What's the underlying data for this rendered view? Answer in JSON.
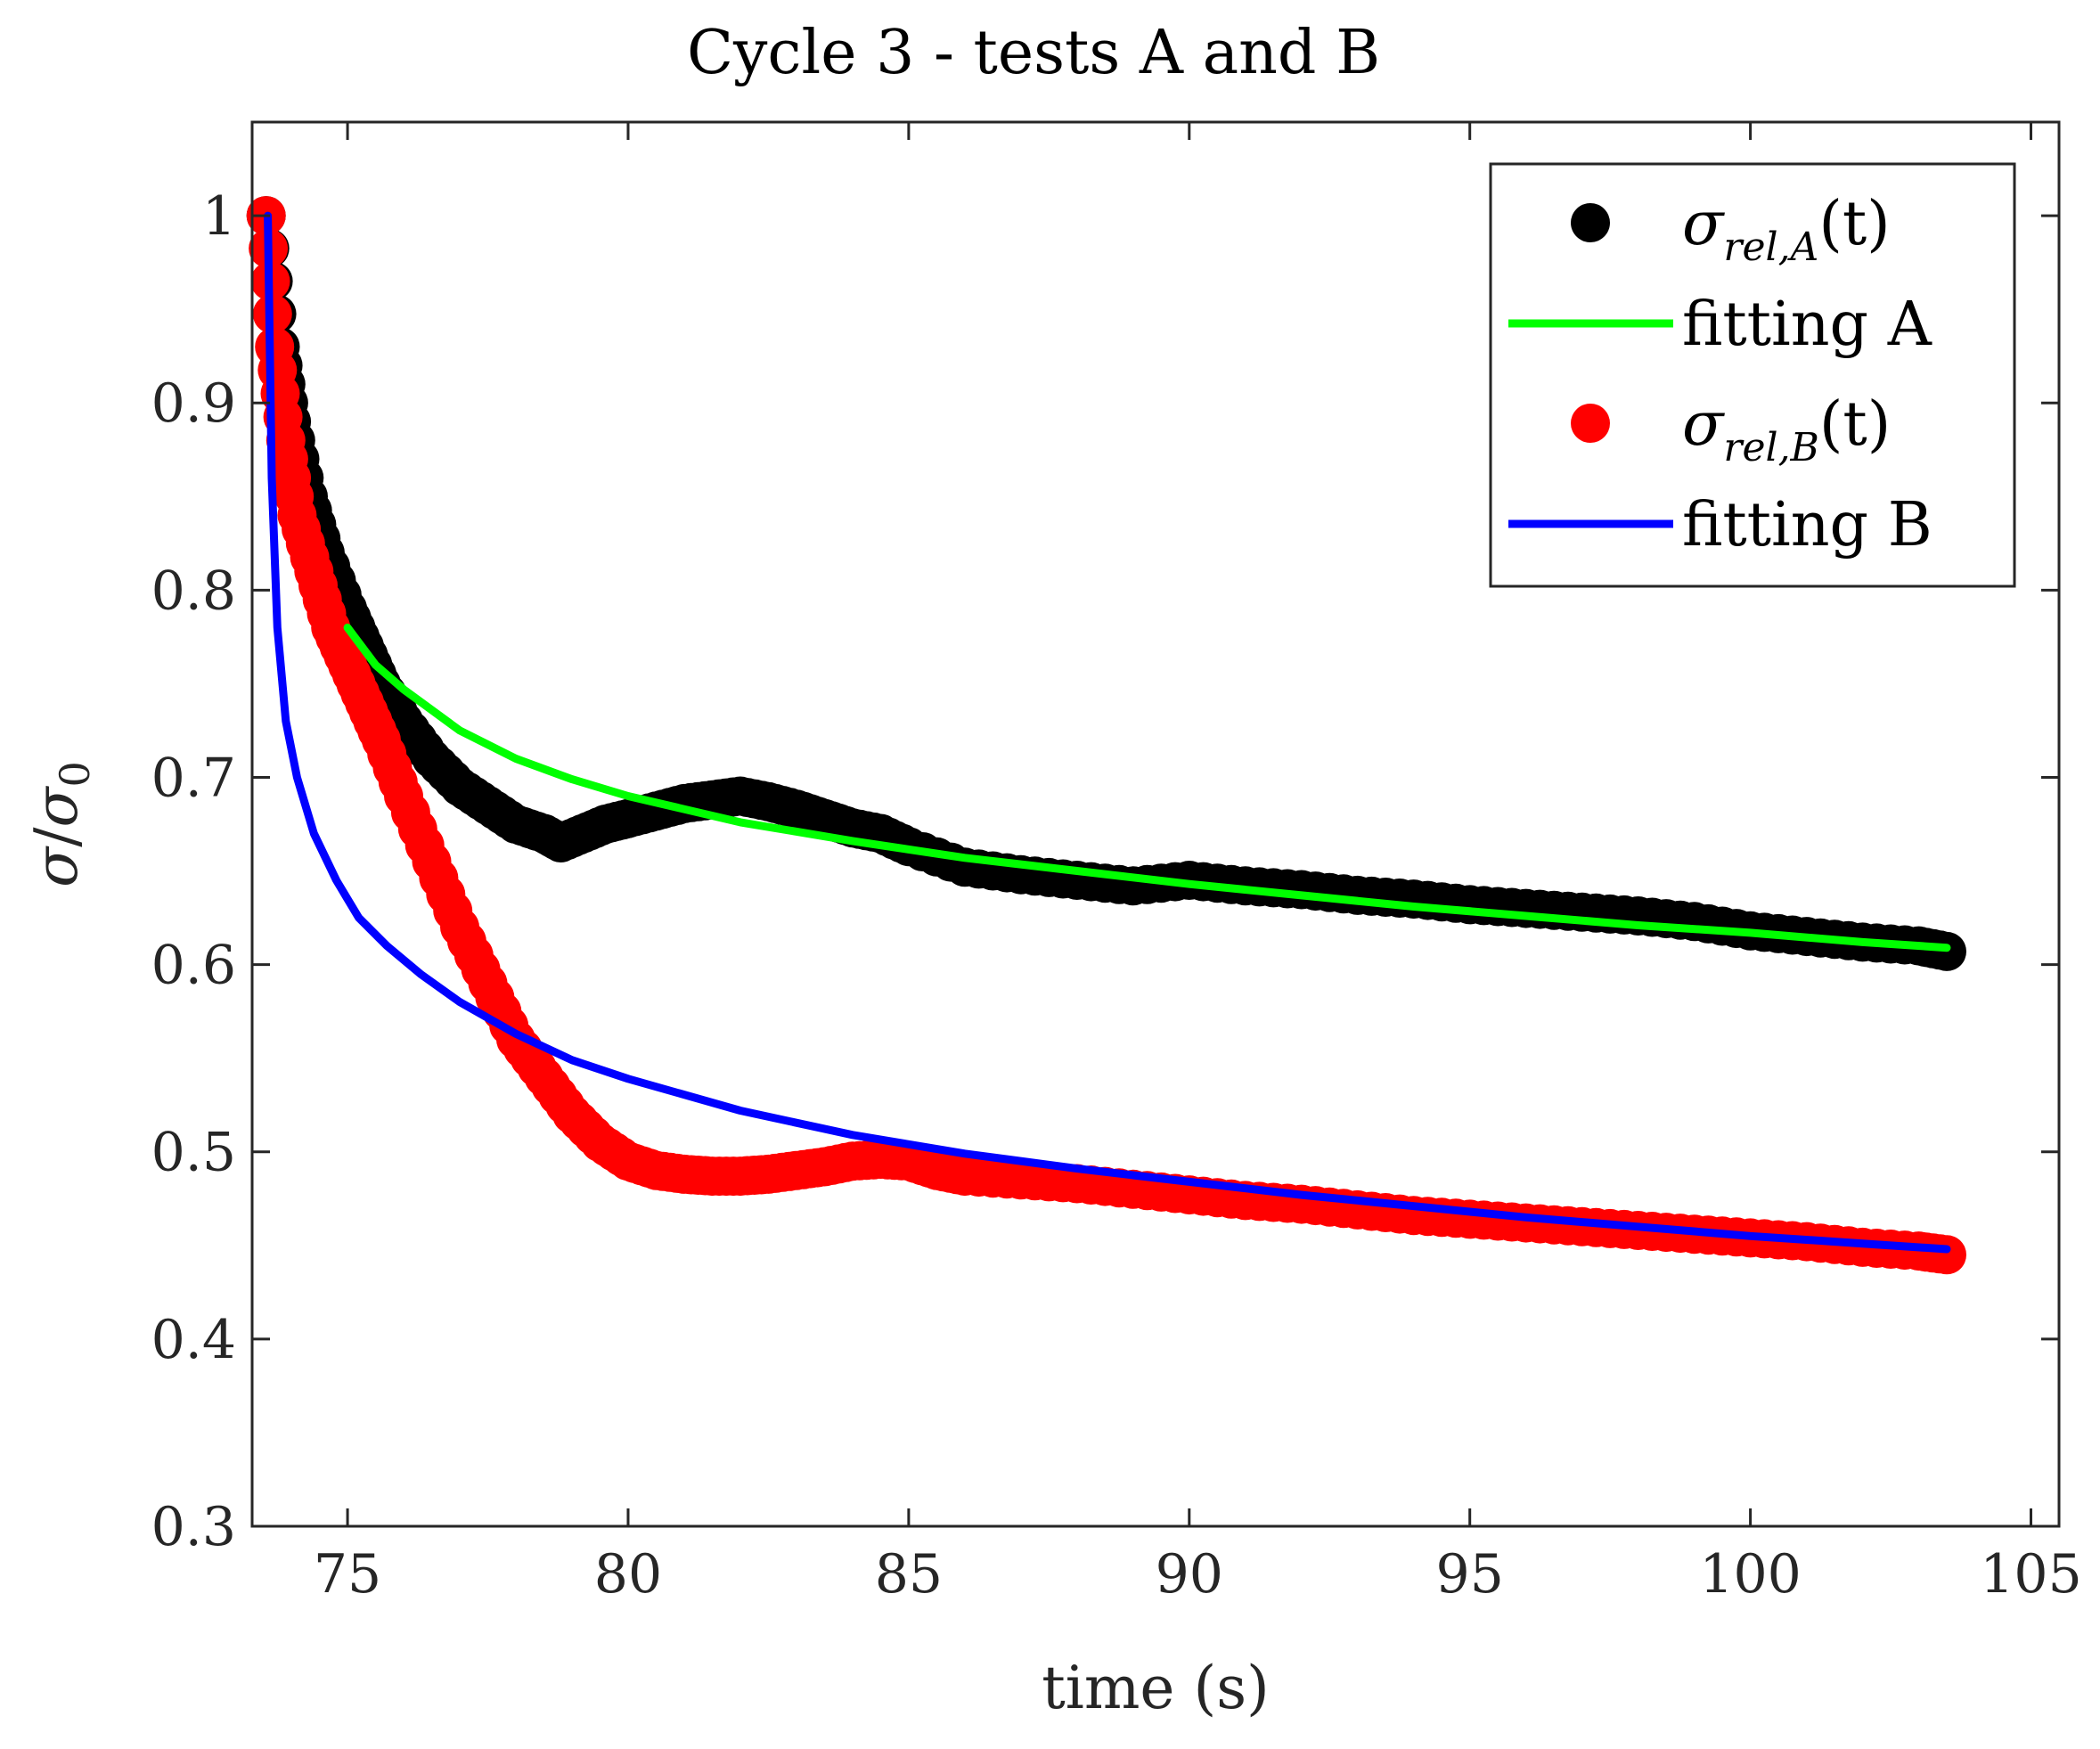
{
  "chart_data": {
    "type": "scatter",
    "title": "Cycle 3 - tests A and B",
    "xlabel": "time (s)",
    "ylabel": {
      "main": "σ",
      "slash": "/",
      "denominator": "σ",
      "denominator_sub": "0"
    },
    "xlim": [
      73.3,
      105.5
    ],
    "ylim": [
      0.3,
      1.05
    ],
    "xticks": [
      75,
      80,
      85,
      90,
      95,
      100,
      105
    ],
    "yticks": [
      0.3,
      0.4,
      0.5,
      0.6,
      0.7,
      0.8,
      0.9,
      1
    ],
    "xtick_labels": [
      "75",
      "80",
      "85",
      "90",
      "95",
      "100",
      "105"
    ],
    "ytick_labels": [
      "0.3",
      "0.4",
      "0.5",
      "0.6",
      "0.7",
      "0.8",
      "0.9",
      "1"
    ],
    "grid": false,
    "legend_position": "top-right",
    "legend": [
      {
        "key": "A_data",
        "main": "σ",
        "sub": "rel,A",
        "suffix": "(t)",
        "marker": "dot",
        "color": "#000000"
      },
      {
        "key": "A_fit",
        "label": "fitting A",
        "marker": "line",
        "color": "#00ff00"
      },
      {
        "key": "B_data",
        "main": "σ",
        "sub": "rel,B",
        "suffix": "(t)",
        "marker": "dot",
        "color": "#ff0000"
      },
      {
        "key": "B_fit",
        "label": "fitting B",
        "marker": "line",
        "color": "#0000ff"
      }
    ],
    "series": [
      {
        "name": "σrel,A(t)",
        "kind": "scatter",
        "color": "#000000",
        "x": [
          73.55,
          73.8,
          74.0,
          74.3,
          74.6,
          75.0,
          75.3,
          75.6,
          76.0,
          76.5,
          77.0,
          77.5,
          78.0,
          78.5,
          78.8,
          79.2,
          79.6,
          80.0,
          80.5,
          81.0,
          81.5,
          82.0,
          82.5,
          83.0,
          83.5,
          84.0,
          84.5,
          85.0,
          86.0,
          87.0,
          88.0,
          89.0,
          90.0,
          91.0,
          92.0,
          93.0,
          94.0,
          95.0,
          96.0,
          97.0,
          98.0,
          99.0,
          100.0,
          101.0,
          102.0,
          103.0,
          103.5
        ],
        "y": [
          1.0,
          0.93,
          0.89,
          0.85,
          0.82,
          0.79,
          0.77,
          0.75,
          0.73,
          0.71,
          0.695,
          0.685,
          0.675,
          0.67,
          0.665,
          0.67,
          0.675,
          0.678,
          0.682,
          0.686,
          0.688,
          0.69,
          0.687,
          0.683,
          0.678,
          0.673,
          0.67,
          0.663,
          0.652,
          0.648,
          0.645,
          0.642,
          0.645,
          0.642,
          0.64,
          0.637,
          0.635,
          0.632,
          0.63,
          0.628,
          0.626,
          0.623,
          0.618,
          0.615,
          0.612,
          0.61,
          0.607
        ]
      },
      {
        "name": "fitting A",
        "kind": "line",
        "color": "#00ff00",
        "x": [
          75.0,
          75.5,
          76.0,
          77.0,
          78.0,
          79.0,
          80.0,
          82.0,
          84.0,
          86.0,
          88.0,
          90.0,
          92.0,
          94.0,
          96.0,
          98.0,
          100.0,
          102.0,
          103.5
        ],
        "y": [
          0.78,
          0.76,
          0.747,
          0.725,
          0.71,
          0.699,
          0.69,
          0.676,
          0.666,
          0.657,
          0.65,
          0.643,
          0.637,
          0.631,
          0.626,
          0.621,
          0.617,
          0.612,
          0.609
        ]
      },
      {
        "name": "σrel,B(t)",
        "kind": "scatter",
        "color": "#ff0000",
        "x": [
          73.55,
          73.7,
          73.9,
          74.1,
          74.4,
          74.7,
          75.0,
          75.3,
          75.6,
          76.0,
          76.5,
          77.0,
          77.5,
          78.0,
          78.5,
          79.0,
          79.5,
          80.0,
          80.5,
          81.0,
          81.5,
          82.0,
          82.5,
          83.0,
          83.5,
          84.0,
          84.5,
          85.0,
          85.5,
          86.0,
          87.0,
          88.0,
          89.0,
          90.0,
          91.0,
          92.0,
          93.0,
          94.0,
          95.0,
          96.0,
          97.0,
          98.0,
          99.0,
          100.0,
          101.0,
          102.0,
          103.0,
          103.5
        ],
        "y": [
          1.0,
          0.93,
          0.88,
          0.84,
          0.81,
          0.78,
          0.76,
          0.74,
          0.72,
          0.69,
          0.655,
          0.62,
          0.59,
          0.56,
          0.54,
          0.52,
          0.505,
          0.495,
          0.49,
          0.488,
          0.487,
          0.487,
          0.488,
          0.49,
          0.492,
          0.495,
          0.496,
          0.495,
          0.49,
          0.487,
          0.485,
          0.483,
          0.48,
          0.477,
          0.474,
          0.472,
          0.469,
          0.466,
          0.464,
          0.462,
          0.46,
          0.458,
          0.456,
          0.454,
          0.452,
          0.449,
          0.447,
          0.445
        ]
      },
      {
        "name": "fitting B",
        "kind": "line",
        "color": "#0000ff",
        "x": [
          73.58,
          73.65,
          73.75,
          73.9,
          74.1,
          74.4,
          74.8,
          75.2,
          75.7,
          76.3,
          77.0,
          78.0,
          79.0,
          80.0,
          82.0,
          84.0,
          86.0,
          88.0,
          90.0,
          92.0,
          94.0,
          96.0,
          98.0,
          100.0,
          102.0,
          103.5
        ],
        "y": [
          1.0,
          0.86,
          0.78,
          0.73,
          0.7,
          0.67,
          0.645,
          0.625,
          0.61,
          0.595,
          0.58,
          0.563,
          0.549,
          0.539,
          0.522,
          0.509,
          0.499,
          0.491,
          0.484,
          0.477,
          0.471,
          0.465,
          0.46,
          0.455,
          0.451,
          0.448
        ]
      }
    ]
  }
}
